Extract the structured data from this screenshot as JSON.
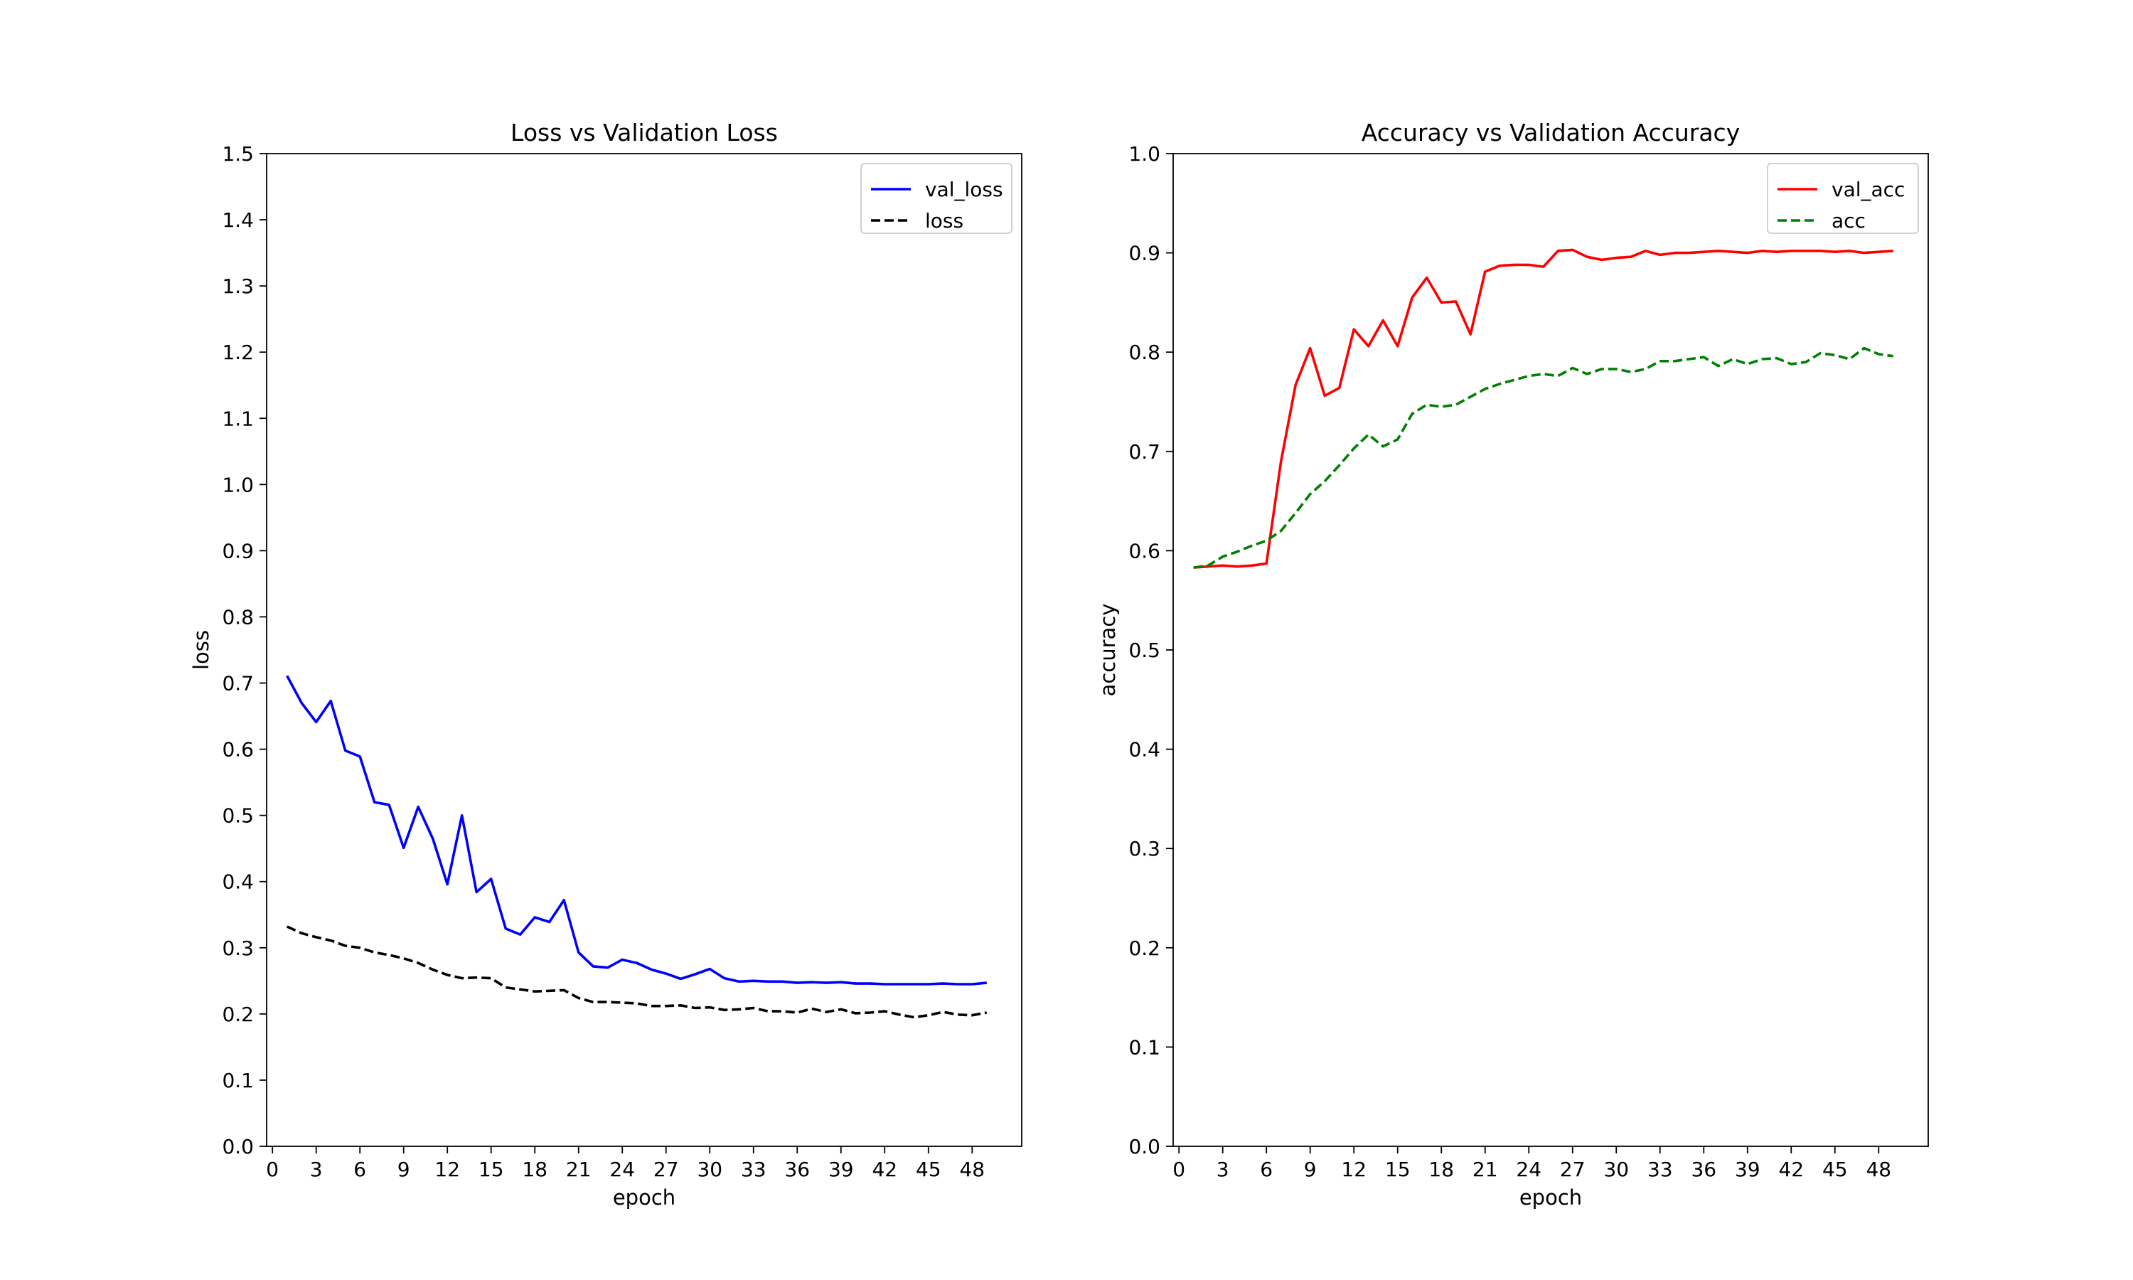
{
  "chart_data": [
    {
      "type": "line",
      "title": "Loss vs Validation Loss",
      "xlabel": "epoch",
      "ylabel": "loss",
      "xlim": [
        -0.4,
        51.4
      ],
      "ylim": [
        0,
        1.5
      ],
      "xticks": [
        "0",
        "3",
        "6",
        "9",
        "12",
        "15",
        "18",
        "21",
        "24",
        "27",
        "30",
        "33",
        "36",
        "39",
        "42",
        "45",
        "48"
      ],
      "yticks": [
        "0.0",
        "0.1",
        "0.2",
        "0.3",
        "0.4",
        "0.5",
        "0.6",
        "0.7",
        "0.8",
        "0.9",
        "1.0",
        "1.1",
        "1.2",
        "1.3",
        "1.4",
        "1.5"
      ],
      "legend_position": "top-right",
      "x": [
        1,
        2,
        3,
        4,
        5,
        6,
        7,
        8,
        9,
        10,
        11,
        12,
        13,
        14,
        15,
        16,
        17,
        18,
        19,
        20,
        21,
        22,
        23,
        24,
        25,
        26,
        27,
        28,
        29,
        30,
        31,
        32,
        33,
        34,
        35,
        36,
        37,
        38,
        39,
        40,
        41,
        42,
        43,
        44,
        45,
        46,
        47,
        48,
        49
      ],
      "series": [
        {
          "name": "val_loss",
          "color": "#0000ff",
          "style": "solid",
          "values": [
            0.711,
            0.67,
            0.641,
            0.673,
            0.598,
            0.589,
            0.52,
            0.516,
            0.451,
            0.513,
            0.465,
            0.396,
            0.5,
            0.384,
            0.404,
            0.329,
            0.32,
            0.346,
            0.339,
            0.372,
            0.293,
            0.272,
            0.27,
            0.282,
            0.277,
            0.267,
            0.261,
            0.253,
            0.26,
            0.268,
            0.254,
            0.249,
            0.25,
            0.249,
            0.249,
            0.247,
            0.248,
            0.247,
            0.248,
            0.246,
            0.246,
            0.245,
            0.245,
            0.245,
            0.245,
            0.246,
            0.245,
            0.245,
            0.247
          ]
        },
        {
          "name": "loss",
          "color": "#000000",
          "style": "dashed",
          "values": [
            0.332,
            0.322,
            0.316,
            0.311,
            0.303,
            0.3,
            0.293,
            0.289,
            0.284,
            0.277,
            0.267,
            0.259,
            0.254,
            0.255,
            0.254,
            0.24,
            0.237,
            0.234,
            0.235,
            0.236,
            0.224,
            0.218,
            0.218,
            0.217,
            0.216,
            0.212,
            0.212,
            0.213,
            0.209,
            0.21,
            0.206,
            0.207,
            0.209,
            0.204,
            0.204,
            0.202,
            0.208,
            0.203,
            0.207,
            0.201,
            0.202,
            0.204,
            0.199,
            0.195,
            0.198,
            0.203,
            0.199,
            0.198,
            0.202
          ]
        }
      ]
    },
    {
      "type": "line",
      "title": "Accuracy vs Validation Accuracy",
      "xlabel": "epoch",
      "ylabel": "accuracy",
      "xlim": [
        -0.4,
        51.4
      ],
      "ylim": [
        0,
        1.0
      ],
      "xticks": [
        "0",
        "3",
        "6",
        "9",
        "12",
        "15",
        "18",
        "21",
        "24",
        "27",
        "30",
        "33",
        "36",
        "39",
        "42",
        "45",
        "48"
      ],
      "yticks": [
        "0.0",
        "0.1",
        "0.2",
        "0.3",
        "0.4",
        "0.5",
        "0.6",
        "0.7",
        "0.8",
        "0.9",
        "1.0"
      ],
      "legend_position": "top-right",
      "x": [
        1,
        2,
        3,
        4,
        5,
        6,
        7,
        8,
        9,
        10,
        11,
        12,
        13,
        14,
        15,
        16,
        17,
        18,
        19,
        20,
        21,
        22,
        23,
        24,
        25,
        26,
        27,
        28,
        29,
        30,
        31,
        32,
        33,
        34,
        35,
        36,
        37,
        38,
        39,
        40,
        41,
        42,
        43,
        44,
        45,
        46,
        47,
        48,
        49
      ],
      "series": [
        {
          "name": "val_acc",
          "color": "#ff0000",
          "style": "solid",
          "values": [
            0.583,
            0.584,
            0.585,
            0.584,
            0.585,
            0.587,
            0.69,
            0.767,
            0.804,
            0.756,
            0.764,
            0.823,
            0.806,
            0.832,
            0.806,
            0.855,
            0.875,
            0.85,
            0.851,
            0.818,
            0.881,
            0.887,
            0.888,
            0.888,
            0.886,
            0.902,
            0.903,
            0.896,
            0.893,
            0.895,
            0.896,
            0.902,
            0.898,
            0.9,
            0.9,
            0.901,
            0.902,
            0.901,
            0.9,
            0.902,
            0.901,
            0.902,
            0.902,
            0.902,
            0.901,
            0.902,
            0.9,
            0.901,
            0.902
          ]
        },
        {
          "name": "acc",
          "color": "#008000",
          "style": "dashed",
          "values": [
            0.583,
            0.585,
            0.594,
            0.599,
            0.605,
            0.61,
            0.62,
            0.638,
            0.657,
            0.67,
            0.686,
            0.703,
            0.717,
            0.705,
            0.712,
            0.738,
            0.747,
            0.745,
            0.747,
            0.755,
            0.763,
            0.768,
            0.772,
            0.776,
            0.778,
            0.776,
            0.784,
            0.778,
            0.783,
            0.783,
            0.78,
            0.783,
            0.791,
            0.791,
            0.793,
            0.795,
            0.786,
            0.793,
            0.788,
            0.793,
            0.794,
            0.788,
            0.79,
            0.799,
            0.797,
            0.793,
            0.804,
            0.798,
            0.796
          ]
        }
      ]
    }
  ]
}
